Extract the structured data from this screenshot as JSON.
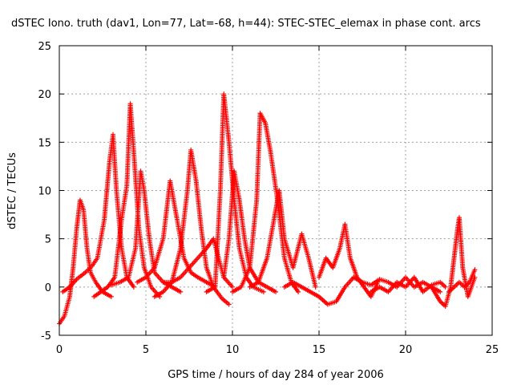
{
  "chart_data": {
    "type": "scatter",
    "title": "dSTEC Iono. truth (dav1, Lon=77, Lat=-68, h=44): STEC-STEC_elemax in phase cont. arcs",
    "xlabel": "GPS time / hours of day 284 of year 2006",
    "ylabel": "dSTEC  / TECUs",
    "xlim": [
      0,
      25
    ],
    "ylim": [
      -5,
      25
    ],
    "xticks": [
      0,
      5,
      10,
      15,
      20,
      25
    ],
    "yticks": [
      -5,
      0,
      5,
      10,
      15,
      20,
      25
    ],
    "grid": true,
    "marker": "plus",
    "colors": {
      "series": "#ff0000",
      "grid": "#a0a0a0",
      "frame": "#000000"
    },
    "series": [
      {
        "values": [
          [
            0.0,
            -3.8
          ],
          [
            0.3,
            -3.0
          ],
          [
            0.6,
            -1.0
          ],
          [
            0.8,
            2.0
          ],
          [
            1.0,
            6.0
          ],
          [
            1.2,
            9.0
          ],
          [
            1.4,
            8.0
          ],
          [
            1.6,
            4.0
          ],
          [
            1.8,
            1.5
          ],
          [
            2.1,
            0.5
          ],
          [
            2.5,
            -0.5
          ],
          [
            3.0,
            -1.0
          ]
        ]
      },
      {
        "values": [
          [
            0.2,
            -0.5
          ],
          [
            0.6,
            0.0
          ],
          [
            1.0,
            0.8
          ],
          [
            1.5,
            1.5
          ],
          [
            1.9,
            2.2
          ],
          [
            2.2,
            3.0
          ],
          [
            2.6,
            7.0
          ],
          [
            2.9,
            13.0
          ],
          [
            3.1,
            15.8
          ],
          [
            3.3,
            10.0
          ],
          [
            3.6,
            4.0
          ],
          [
            3.9,
            1.0
          ],
          [
            4.3,
            0.0
          ]
        ]
      },
      {
        "values": [
          [
            2.0,
            -1.0
          ],
          [
            2.4,
            -0.5
          ],
          [
            2.8,
            0.0
          ],
          [
            3.2,
            1.0
          ],
          [
            3.6,
            7.0
          ],
          [
            3.9,
            10.5
          ],
          [
            4.1,
            19.0
          ],
          [
            4.3,
            14.0
          ],
          [
            4.6,
            6.0
          ],
          [
            4.9,
            2.0
          ],
          [
            5.3,
            0.0
          ],
          [
            5.8,
            -1.0
          ]
        ]
      },
      {
        "values": [
          [
            3.0,
            0.2
          ],
          [
            3.5,
            0.5
          ],
          [
            4.0,
            1.0
          ],
          [
            4.4,
            4.0
          ],
          [
            4.7,
            12.0
          ],
          [
            4.9,
            10.0
          ],
          [
            5.2,
            5.0
          ],
          [
            5.5,
            1.5
          ],
          [
            6.0,
            0.5
          ],
          [
            6.5,
            0.0
          ],
          [
            7.0,
            -0.5
          ]
        ]
      },
      {
        "values": [
          [
            4.5,
            0.5
          ],
          [
            5.0,
            1.0
          ],
          [
            5.5,
            2.0
          ],
          [
            6.0,
            5.0
          ],
          [
            6.4,
            11.0
          ],
          [
            6.8,
            7.0
          ],
          [
            7.2,
            3.0
          ],
          [
            7.6,
            1.5
          ],
          [
            8.0,
            1.0
          ],
          [
            8.5,
            0.5
          ],
          [
            9.0,
            0.0
          ]
        ]
      },
      {
        "values": [
          [
            5.5,
            -1.0
          ],
          [
            6.0,
            -0.5
          ],
          [
            6.5,
            0.5
          ],
          [
            7.0,
            4.0
          ],
          [
            7.4,
            10.0
          ],
          [
            7.6,
            14.2
          ],
          [
            7.9,
            11.0
          ],
          [
            8.2,
            6.0
          ],
          [
            8.5,
            2.0
          ],
          [
            8.9,
            0.0
          ],
          [
            9.4,
            -1.2
          ],
          [
            9.8,
            -1.8
          ]
        ]
      },
      {
        "values": [
          [
            6.0,
            0.5
          ],
          [
            6.5,
            0.5
          ],
          [
            7.0,
            1.0
          ],
          [
            7.5,
            2.0
          ],
          [
            8.0,
            3.0
          ],
          [
            8.5,
            4.0
          ],
          [
            8.9,
            5.0
          ],
          [
            9.2,
            3.0
          ],
          [
            9.5,
            1.0
          ],
          [
            10.0,
            0.0
          ]
        ]
      },
      {
        "values": [
          [
            8.5,
            -0.5
          ],
          [
            9.0,
            0.0
          ],
          [
            9.3,
            10.0
          ],
          [
            9.5,
            20.0
          ],
          [
            9.8,
            15.0
          ],
          [
            10.1,
            9.0
          ],
          [
            10.4,
            4.0
          ],
          [
            10.8,
            1.0
          ],
          [
            11.2,
            0.0
          ],
          [
            11.8,
            -0.5
          ]
        ]
      },
      {
        "values": [
          [
            9.5,
            1.0
          ],
          [
            9.8,
            5.0
          ],
          [
            10.1,
            12.0
          ],
          [
            10.4,
            9.0
          ],
          [
            10.7,
            5.0
          ],
          [
            11.0,
            2.0
          ],
          [
            11.5,
            0.5
          ],
          [
            12.0,
            0.0
          ],
          [
            12.5,
            -0.5
          ]
        ]
      },
      {
        "values": [
          [
            10.0,
            -0.5
          ],
          [
            10.5,
            0.0
          ],
          [
            11.0,
            2.0
          ],
          [
            11.4,
            9.0
          ],
          [
            11.6,
            18.0
          ],
          [
            11.9,
            17.0
          ],
          [
            12.2,
            14.0
          ],
          [
            12.6,
            9.0
          ],
          [
            13.0,
            3.0
          ],
          [
            13.4,
            0.5
          ],
          [
            13.8,
            -0.5
          ]
        ]
      },
      {
        "values": [
          [
            11.0,
            0.0
          ],
          [
            11.5,
            0.5
          ],
          [
            12.0,
            3.0
          ],
          [
            12.4,
            7.0
          ],
          [
            12.7,
            10.0
          ],
          [
            13.0,
            5.0
          ],
          [
            13.5,
            2.0
          ],
          [
            14.0,
            5.5
          ],
          [
            14.4,
            3.0
          ],
          [
            14.8,
            0.0
          ]
        ]
      },
      {
        "values": [
          [
            13.0,
            0.0
          ],
          [
            13.5,
            0.5
          ],
          [
            14.0,
            0.0
          ],
          [
            14.5,
            -0.5
          ],
          [
            15.0,
            -1.0
          ],
          [
            15.5,
            -1.8
          ],
          [
            16.0,
            -1.5
          ],
          [
            16.5,
            0.0
          ],
          [
            17.0,
            1.0
          ],
          [
            17.5,
            0.5
          ]
        ]
      },
      {
        "values": [
          [
            15.0,
            1.0
          ],
          [
            15.4,
            3.0
          ],
          [
            15.8,
            2.0
          ],
          [
            16.2,
            4.0
          ],
          [
            16.5,
            6.5
          ],
          [
            16.8,
            3.0
          ],
          [
            17.2,
            1.0
          ],
          [
            17.6,
            0.0
          ],
          [
            18.0,
            -1.0
          ],
          [
            18.4,
            0.5
          ]
        ]
      },
      {
        "values": [
          [
            17.0,
            1.0
          ],
          [
            17.5,
            0.5
          ],
          [
            18.0,
            0.2
          ],
          [
            18.5,
            0.8
          ],
          [
            19.0,
            0.5
          ],
          [
            19.5,
            0.0
          ],
          [
            20.0,
            1.0
          ],
          [
            20.5,
            0.0
          ],
          [
            21.0,
            0.5
          ],
          [
            21.5,
            0.0
          ],
          [
            22.0,
            -0.5
          ]
        ]
      },
      {
        "values": [
          [
            18.0,
            -0.5
          ],
          [
            18.5,
            0.0
          ],
          [
            19.0,
            -0.5
          ],
          [
            19.5,
            0.5
          ],
          [
            20.0,
            0.0
          ],
          [
            20.5,
            1.0
          ],
          [
            21.0,
            -0.5
          ],
          [
            21.5,
            0.2
          ],
          [
            22.0,
            0.5
          ],
          [
            22.3,
            0.0
          ]
        ]
      },
      {
        "values": [
          [
            21.5,
            0.0
          ],
          [
            22.0,
            -1.5
          ],
          [
            22.3,
            -2.0
          ],
          [
            22.6,
            0.0
          ],
          [
            22.8,
            3.0
          ],
          [
            23.0,
            6.0
          ],
          [
            23.1,
            7.2
          ],
          [
            23.3,
            2.0
          ],
          [
            23.6,
            -1.0
          ],
          [
            23.9,
            0.5
          ],
          [
            24.0,
            1.0
          ]
        ]
      },
      {
        "values": [
          [
            22.5,
            -0.5
          ],
          [
            22.8,
            0.0
          ],
          [
            23.1,
            0.5
          ],
          [
            23.4,
            0.0
          ],
          [
            23.7,
            0.5
          ],
          [
            24.0,
            1.8
          ]
        ]
      }
    ]
  }
}
